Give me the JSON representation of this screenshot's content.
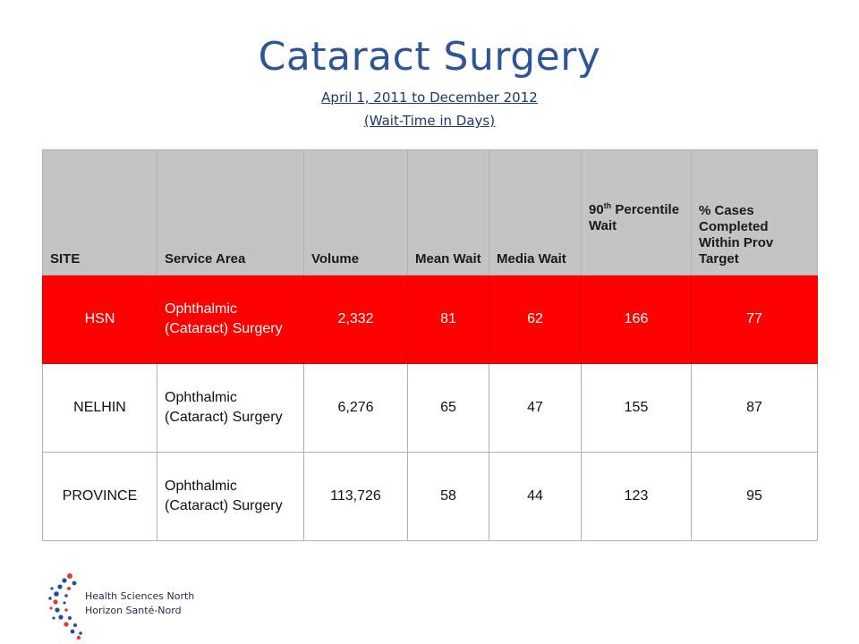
{
  "title": "Cataract Surgery",
  "subtitle_line1": "April 1, 2011 to December 2012",
  "subtitle_line2": "(Wait-Time in Days)",
  "table": {
    "headers": {
      "site": "SITE",
      "service_area": "Service Area",
      "volume": "Volume",
      "mean_wait": "Mean Wait",
      "media_wait": "Media Wait",
      "p90_number": "90",
      "p90_sup": "th",
      "p90_rest": "Percentile Wait",
      "pct_cases": "% Cases Completed Within Prov Target"
    },
    "rows": [
      {
        "site": "HSN",
        "service_area": "Ophthalmic (Cataract) Surgery",
        "volume": "2,332",
        "mean_wait": "81",
        "media_wait": "62",
        "p90": "166",
        "pct": "77"
      },
      {
        "site": "NELHIN",
        "service_area": "Ophthalmic (Cataract) Surgery",
        "volume": "6,276",
        "mean_wait": "65",
        "media_wait": "47",
        "p90": "155",
        "pct": "87"
      },
      {
        "site": "PROVINCE",
        "service_area": "Ophthalmic (Cataract) Surgery",
        "volume": "113,726",
        "mean_wait": "58",
        "media_wait": "44",
        "p90": "123",
        "pct": "95"
      }
    ],
    "highlight_color": "#ff0000"
  },
  "logo": {
    "line1": "Health Sciences North",
    "line2": "Horizon Santé-Nord",
    "colors": {
      "blue": "#1f4e9c",
      "red": "#e03a2f"
    }
  }
}
